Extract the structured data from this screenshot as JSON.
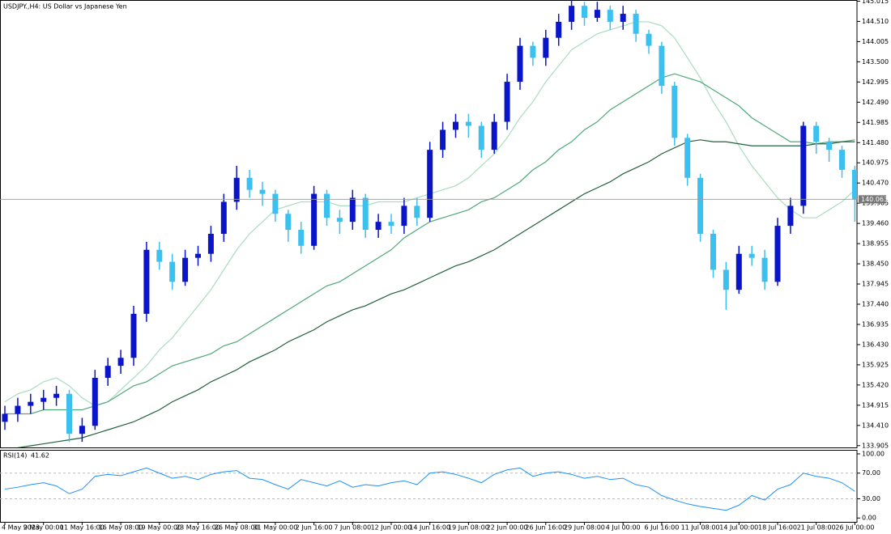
{
  "chart_data": {
    "type": "candlestick",
    "title": "USDJPY.,H4: US Dollar vs Japanese Yen",
    "categories": [
      "4 May 2023",
      null,
      null,
      "9 May 00:00",
      null,
      null,
      "11 May 16:00",
      null,
      null,
      "16 May 08:00",
      null,
      null,
      "19 May 00:00",
      null,
      null,
      "23 May 16:00",
      null,
      null,
      "26 May 08:00",
      null,
      null,
      "31 May 00:00",
      null,
      null,
      "2 Jun 16:00",
      null,
      null,
      "7 Jun 08:00",
      null,
      null,
      "12 Jun 00:00",
      null,
      null,
      "14 Jun 16:00",
      null,
      null,
      "19 Jun 08:00",
      null,
      null,
      "22 Jun 00:00",
      null,
      null,
      "26 Jun 16:00",
      null,
      null,
      "29 Jun 08:00",
      null,
      null,
      "4 Jul 00:00",
      null,
      null,
      "6 Jul 16:00",
      null,
      null,
      "11 Jul 08:00",
      null,
      null,
      "14 Jul 00:00",
      null,
      null,
      "18 Jul 16:00",
      null,
      null,
      "21 Jul 08:00",
      null,
      null,
      "26 Jul 00:00"
    ],
    "open": [
      134.5,
      134.7,
      134.9,
      135.0,
      135.1,
      135.2,
      134.2,
      134.4,
      135.6,
      135.9,
      136.1,
      137.2,
      138.8,
      138.5,
      138.0,
      138.6,
      138.7,
      139.2,
      140.0,
      140.6,
      140.3,
      140.2,
      139.7,
      139.3,
      138.9,
      140.2,
      139.6,
      139.5,
      140.1,
      139.3,
      139.5,
      139.4,
      139.9,
      139.6,
      141.3,
      141.8,
      142.0,
      141.9,
      141.3,
      142.0,
      143.0,
      143.9,
      143.6,
      144.1,
      144.5,
      144.9,
      144.6,
      144.8,
      144.5,
      144.7,
      144.2,
      143.9,
      142.9,
      141.6,
      140.6,
      139.2,
      138.3,
      137.8,
      138.7,
      138.6,
      138.0,
      139.4,
      139.9,
      141.9,
      141.5,
      141.3,
      140.8
    ],
    "high": [
      134.9,
      135.1,
      135.2,
      135.3,
      135.4,
      135.3,
      134.6,
      135.8,
      136.1,
      136.3,
      137.4,
      139.0,
      139.0,
      138.7,
      138.8,
      138.9,
      139.4,
      140.2,
      140.9,
      140.8,
      140.5,
      140.3,
      139.8,
      139.5,
      140.4,
      140.3,
      139.8,
      140.3,
      140.2,
      139.7,
      139.7,
      140.1,
      140.1,
      141.5,
      142.0,
      142.2,
      142.2,
      142.0,
      142.2,
      143.2,
      144.1,
      144.0,
      144.3,
      144.7,
      145.05,
      145.0,
      145.0,
      144.9,
      144.9,
      144.8,
      144.3,
      144.0,
      143.0,
      141.7,
      140.7,
      139.3,
      138.5,
      138.9,
      138.9,
      138.8,
      139.6,
      140.1,
      142.0,
      142.0,
      141.6,
      141.4,
      140.9
    ],
    "low": [
      134.3,
      134.5,
      134.7,
      134.8,
      134.9,
      134.0,
      134.0,
      134.3,
      135.4,
      135.7,
      135.9,
      137.0,
      138.3,
      137.8,
      137.9,
      138.4,
      138.5,
      139.0,
      139.8,
      140.1,
      139.9,
      139.5,
      139.0,
      138.7,
      138.8,
      139.4,
      139.2,
      139.3,
      139.1,
      139.1,
      139.2,
      139.2,
      139.4,
      139.5,
      141.1,
      141.6,
      141.6,
      141.1,
      141.2,
      141.8,
      142.8,
      143.4,
      143.4,
      143.9,
      144.3,
      144.4,
      144.5,
      144.3,
      144.3,
      144.0,
      143.7,
      142.7,
      141.4,
      140.4,
      139.0,
      138.1,
      137.3,
      137.7,
      138.4,
      137.8,
      137.9,
      139.2,
      139.7,
      141.2,
      141.0,
      140.6,
      139.5
    ],
    "close": [
      134.7,
      134.9,
      135.0,
      135.1,
      135.2,
      134.2,
      134.4,
      135.6,
      135.9,
      136.1,
      137.2,
      138.8,
      138.5,
      138.0,
      138.6,
      138.7,
      139.2,
      140.0,
      140.6,
      140.3,
      140.2,
      139.7,
      139.3,
      138.9,
      140.2,
      139.6,
      139.5,
      140.1,
      139.3,
      139.5,
      139.4,
      139.9,
      139.6,
      141.3,
      141.8,
      142.0,
      141.9,
      141.3,
      142.0,
      143.0,
      143.9,
      143.6,
      144.1,
      144.5,
      144.9,
      144.6,
      144.8,
      144.5,
      144.7,
      144.2,
      143.9,
      142.9,
      141.6,
      140.6,
      139.2,
      138.3,
      137.8,
      138.7,
      138.6,
      138.0,
      139.4,
      139.9,
      141.9,
      141.5,
      141.3,
      140.8,
      140.063
    ],
    "up_color": "#0a14c8",
    "down_color": "#3cc0f0",
    "moving_averages": [
      {
        "color": "#a8dcc0",
        "values": [
          135.0,
          135.2,
          135.3,
          135.5,
          135.6,
          135.4,
          135.1,
          134.9,
          135.0,
          135.3,
          135.6,
          135.9,
          136.3,
          136.6,
          137.0,
          137.4,
          137.8,
          138.3,
          138.8,
          139.2,
          139.5,
          139.8,
          139.9,
          140.0,
          140.0,
          140.0,
          139.9,
          139.9,
          139.9,
          140.0,
          140.0,
          140.0,
          140.1,
          140.2,
          140.3,
          140.4,
          140.6,
          140.9,
          141.2,
          141.6,
          142.1,
          142.5,
          143.0,
          143.4,
          143.8,
          144.0,
          144.2,
          144.3,
          144.4,
          144.5,
          144.5,
          144.4,
          144.1,
          143.6,
          143.1,
          142.5,
          142.0,
          141.4,
          140.9,
          140.5,
          140.1,
          139.8,
          139.6,
          139.6,
          139.8,
          140.0,
          140.3
        ]
      },
      {
        "color": "#4fa878",
        "values": [
          134.7,
          134.7,
          134.7,
          134.8,
          134.8,
          134.8,
          134.8,
          134.9,
          135.0,
          135.2,
          135.4,
          135.5,
          135.7,
          135.9,
          136.0,
          136.1,
          136.2,
          136.4,
          136.5,
          136.7,
          136.9,
          137.1,
          137.3,
          137.5,
          137.7,
          137.9,
          138.0,
          138.2,
          138.4,
          138.6,
          138.8,
          139.1,
          139.3,
          139.5,
          139.6,
          139.7,
          139.8,
          140.0,
          140.1,
          140.3,
          140.5,
          140.8,
          141.0,
          141.3,
          141.5,
          141.8,
          142.0,
          142.3,
          142.5,
          142.7,
          142.9,
          143.1,
          143.2,
          143.1,
          143.0,
          142.8,
          142.6,
          142.4,
          142.1,
          141.9,
          141.7,
          141.5,
          141.5,
          141.45,
          141.5,
          141.5,
          141.55
        ]
      },
      {
        "color": "#22613c",
        "values": [
          133.8,
          133.85,
          133.9,
          133.95,
          134.0,
          134.05,
          134.1,
          134.2,
          134.3,
          134.4,
          134.5,
          134.65,
          134.8,
          135.0,
          135.15,
          135.3,
          135.5,
          135.65,
          135.8,
          136.0,
          136.15,
          136.3,
          136.5,
          136.65,
          136.8,
          137.0,
          137.15,
          137.3,
          137.4,
          137.55,
          137.7,
          137.8,
          137.95,
          138.1,
          138.25,
          138.4,
          138.5,
          138.65,
          138.8,
          139.0,
          139.2,
          139.4,
          139.6,
          139.8,
          140.0,
          140.2,
          140.35,
          140.5,
          140.7,
          140.85,
          141.0,
          141.2,
          141.35,
          141.5,
          141.55,
          141.5,
          141.5,
          141.45,
          141.4,
          141.4,
          141.4,
          141.4,
          141.4,
          141.45,
          141.45,
          141.5,
          141.5
        ]
      }
    ],
    "ylim": [
      133.86,
      145.045
    ],
    "yticks": [
      145.015,
      {
        "value": 144.51,
        "label": "144.510"
      },
      144.005,
      {
        "value": 143.5,
        "label": "143.500"
      },
      142.995,
      {
        "value": 142.49,
        "label": "142.490"
      },
      141.985,
      {
        "value": 141.48,
        "label": "141.480"
      },
      140.975,
      {
        "value": 140.47,
        "label": "140.470"
      },
      139.965,
      {
        "value": 139.46,
        "label": "139.460"
      },
      138.955,
      {
        "value": 138.45,
        "label": "138.450"
      },
      137.945,
      {
        "value": 137.44,
        "label": "137.440"
      },
      136.935,
      {
        "value": 136.43,
        "label": "136.430"
      },
      135.925,
      {
        "value": 135.42,
        "label": "135.420"
      },
      134.915,
      {
        "value": 134.41,
        "label": "134.410"
      },
      133.905
    ],
    "rsi": {
      "title": "RSI(14)",
      "color": "#1e90ff",
      "values": [
        45,
        48,
        52,
        55,
        50,
        38,
        45,
        65,
        68,
        66,
        72,
        78,
        70,
        62,
        65,
        60,
        68,
        72,
        74,
        62,
        60,
        52,
        45,
        60,
        55,
        50,
        58,
        48,
        52,
        50,
        55,
        58,
        52,
        70,
        72,
        68,
        62,
        55,
        68,
        75,
        78,
        65,
        70,
        72,
        68,
        62,
        65,
        60,
        62,
        52,
        48,
        35,
        28,
        22,
        18,
        15,
        12,
        20,
        35,
        28,
        45,
        52,
        70,
        65,
        62,
        55,
        41.62
      ],
      "ylim": [
        -6,
        105
      ],
      "yticks": [
        {
          "value": 100,
          "label": "100.00"
        },
        {
          "value": 70,
          "label": "70.00"
        },
        {
          "value": 30,
          "label": "30.00"
        },
        {
          "value": 0,
          "label": "0.00"
        }
      ],
      "levels": [
        70,
        30
      ]
    }
  }
}
